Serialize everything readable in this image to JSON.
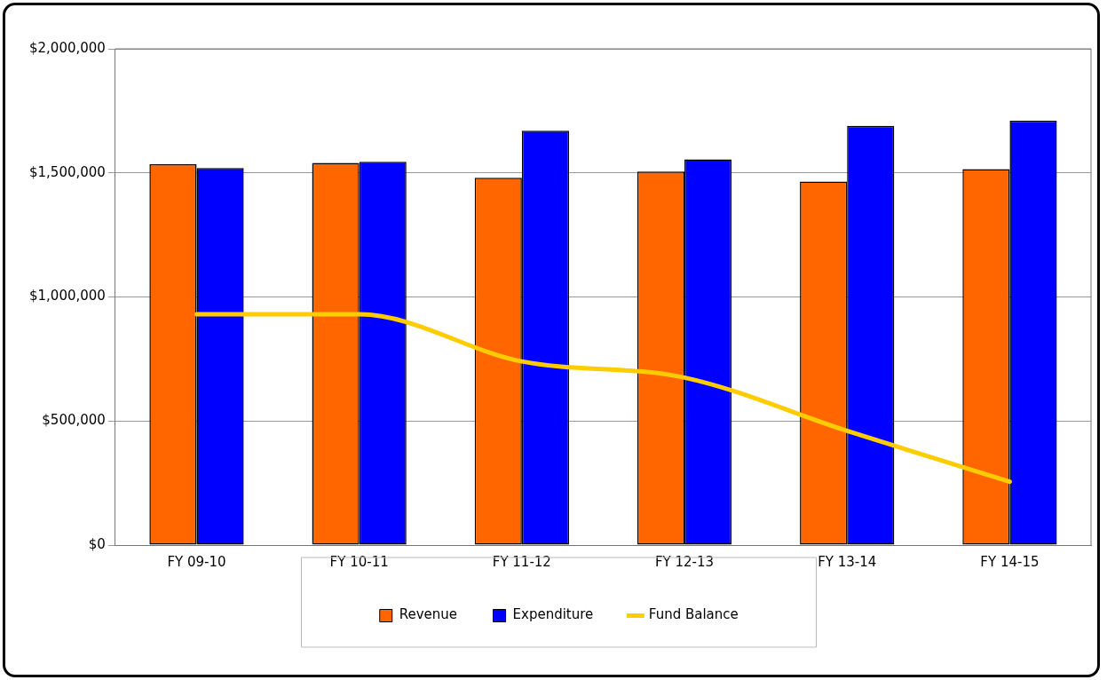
{
  "chart_data": {
    "type": "bar",
    "categories": [
      "FY 09-10",
      "FY 10-11",
      "FY 11-12",
      "FY 12-13",
      "FY 13-14",
      "FY 14-15"
    ],
    "series": [
      {
        "name": "Revenue",
        "color": "#ff6600",
        "values": [
          1535000,
          1540000,
          1480000,
          1505000,
          1465000,
          1515000
        ]
      },
      {
        "name": "Expenditure",
        "color": "#0000ff",
        "values": [
          1520000,
          1545000,
          1670000,
          1555000,
          1690000,
          1710000
        ]
      },
      {
        "name": "Fund Balance",
        "type": "line",
        "color": "#ffcc00",
        "values": [
          930000,
          930000,
          740000,
          675000,
          460000,
          255000
        ]
      }
    ],
    "ylim": [
      0,
      2000000
    ],
    "yticks": [
      {
        "value": 0,
        "label": "$0"
      },
      {
        "value": 500000,
        "label": "$500,000"
      },
      {
        "value": 1000000,
        "label": "$1,000,000"
      },
      {
        "value": 1500000,
        "label": "$1,500,000"
      },
      {
        "value": 2000000,
        "label": "$2,000,000"
      }
    ],
    "grid": "y",
    "legend": "bottom",
    "marker": "none"
  }
}
